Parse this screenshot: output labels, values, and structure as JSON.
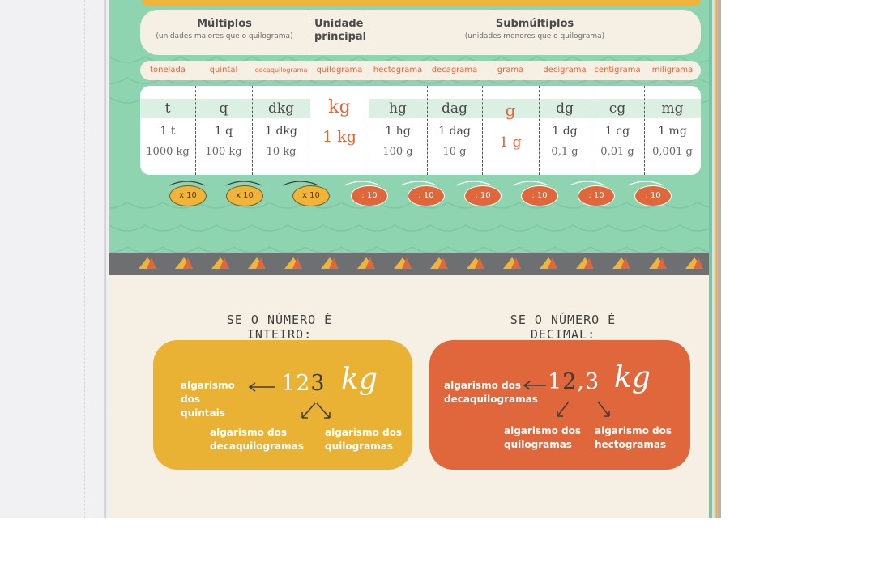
{
  "header": {
    "multiplos_title": "Múltiplos",
    "multiplos_sub": "(unidades maiores que o quilograma)",
    "principal_title": "Unidade principal",
    "submultiplos_title": "Submúltiplos",
    "submultiplos_sub": "(unidades menores que o quilograma)"
  },
  "units": [
    {
      "name": "tonelada",
      "symbol": "t",
      "v1": "1 t",
      "v2": "1000 kg"
    },
    {
      "name": "quintal",
      "symbol": "q",
      "v1": "1 q",
      "v2": "100 kg"
    },
    {
      "name": "decaquilograma",
      "symbol": "dkg",
      "v1": "1 dkg",
      "v2": "10 kg"
    },
    {
      "name": "quilograma",
      "symbol": "kg",
      "v1": "1 kg",
      "v2": ""
    },
    {
      "name": "hectograma",
      "symbol": "hg",
      "v1": "1 hg",
      "v2": "100 g"
    },
    {
      "name": "decagrama",
      "symbol": "dag",
      "v1": "1 dag",
      "v2": "10 g"
    },
    {
      "name": "grama",
      "symbol": "g",
      "v1": "1 g",
      "v2": ""
    },
    {
      "name": "decigrama",
      "symbol": "dg",
      "v1": "1 dg",
      "v2": "0,1 g"
    },
    {
      "name": "centigrama",
      "symbol": "cg",
      "v1": "1 cg",
      "v2": "0,01 g"
    },
    {
      "name": "miligrama",
      "symbol": "mg",
      "v1": "1 mg",
      "v2": "0,001 g"
    }
  ],
  "ops": {
    "mul": [
      "x 10",
      "x 10",
      "x 10"
    ],
    "div": [
      ": 10",
      ": 10",
      ": 10",
      ": 10",
      ": 10",
      ": 10"
    ]
  },
  "rules": {
    "integer": {
      "title": "SE O NÚMERO É INTEIRO:",
      "number_pre": "12",
      "number_dark": "3",
      "unit": "kg",
      "label_left": "algarismo dos quintais",
      "label_mid": "algarismo dos decaquilogramas",
      "label_right": "algarismo dos quilogramas"
    },
    "decimal": {
      "title": "SE O NÚMERO É DECIMAL:",
      "number_pre": "1",
      "number_dark": "2",
      "number_post": ",3",
      "unit": "kg",
      "label_left": "algarismo dos decaquilogramas",
      "label_mid": "algarismo dos quilogramas",
      "label_right": "algarismo dos hectogramas"
    }
  },
  "colors": {
    "green": "#8ed4b0",
    "yellow": "#eab234",
    "orange": "#e0663b",
    "paper": "#f6f0e4"
  }
}
